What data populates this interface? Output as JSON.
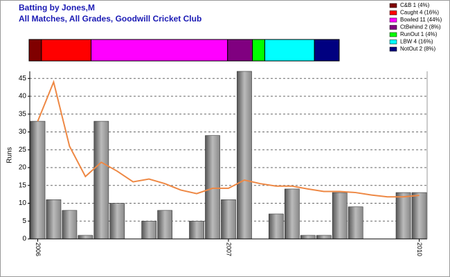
{
  "chart_data": {
    "type": "bar",
    "title": "Batting by Jones,M",
    "subtitle": "All Matches, All Grades, Goodwill Cricket Club",
    "dismissals": [
      {
        "name": "C&B 1 (4%)",
        "color": "#800000",
        "value": 1
      },
      {
        "name": "Caught 4 (16%)",
        "color": "#ff0000",
        "value": 4
      },
      {
        "name": "Bowled 11 (44%)",
        "color": "#ff00ff",
        "value": 11
      },
      {
        "name": "CtBehind 2 (8%)",
        "color": "#800080",
        "value": 2
      },
      {
        "name": "RunOut 1 (4%)",
        "color": "#00ff00",
        "value": 1
      },
      {
        "name": "LBW 4 (16%)",
        "color": "#00ffff",
        "value": 4
      },
      {
        "name": "NotOut 2 (8%)",
        "color": "#000080",
        "value": 2
      }
    ],
    "y_label": "Runs",
    "categories": [
      "2006",
      null,
      null,
      null,
      null,
      null,
      null,
      null,
      null,
      null,
      null,
      null,
      "2007",
      null,
      null,
      null,
      null,
      null,
      null,
      null,
      null,
      null,
      null,
      null,
      "2010"
    ],
    "values": [
      33,
      11,
      8,
      1,
      33,
      10,
      0,
      5,
      8,
      0,
      5,
      29,
      11,
      47,
      0,
      7,
      14,
      1,
      1,
      13,
      9,
      0,
      0,
      13,
      13
    ],
    "line": {
      "color": "#ee8844",
      "values": [
        33,
        44,
        26,
        17.5,
        21.5,
        19,
        16,
        16.8,
        15.5,
        13.7,
        12.7,
        14.2,
        14.2,
        16.5,
        15.5,
        14.8,
        14.8,
        14,
        13.3,
        13.3,
        13,
        12.3,
        11.8,
        11.8,
        12.2
      ]
    },
    "ylim": [
      0,
      47
    ],
    "yticks": [
      0,
      5,
      10,
      15,
      20,
      25,
      30,
      35,
      40,
      45
    ],
    "grid": true
  }
}
